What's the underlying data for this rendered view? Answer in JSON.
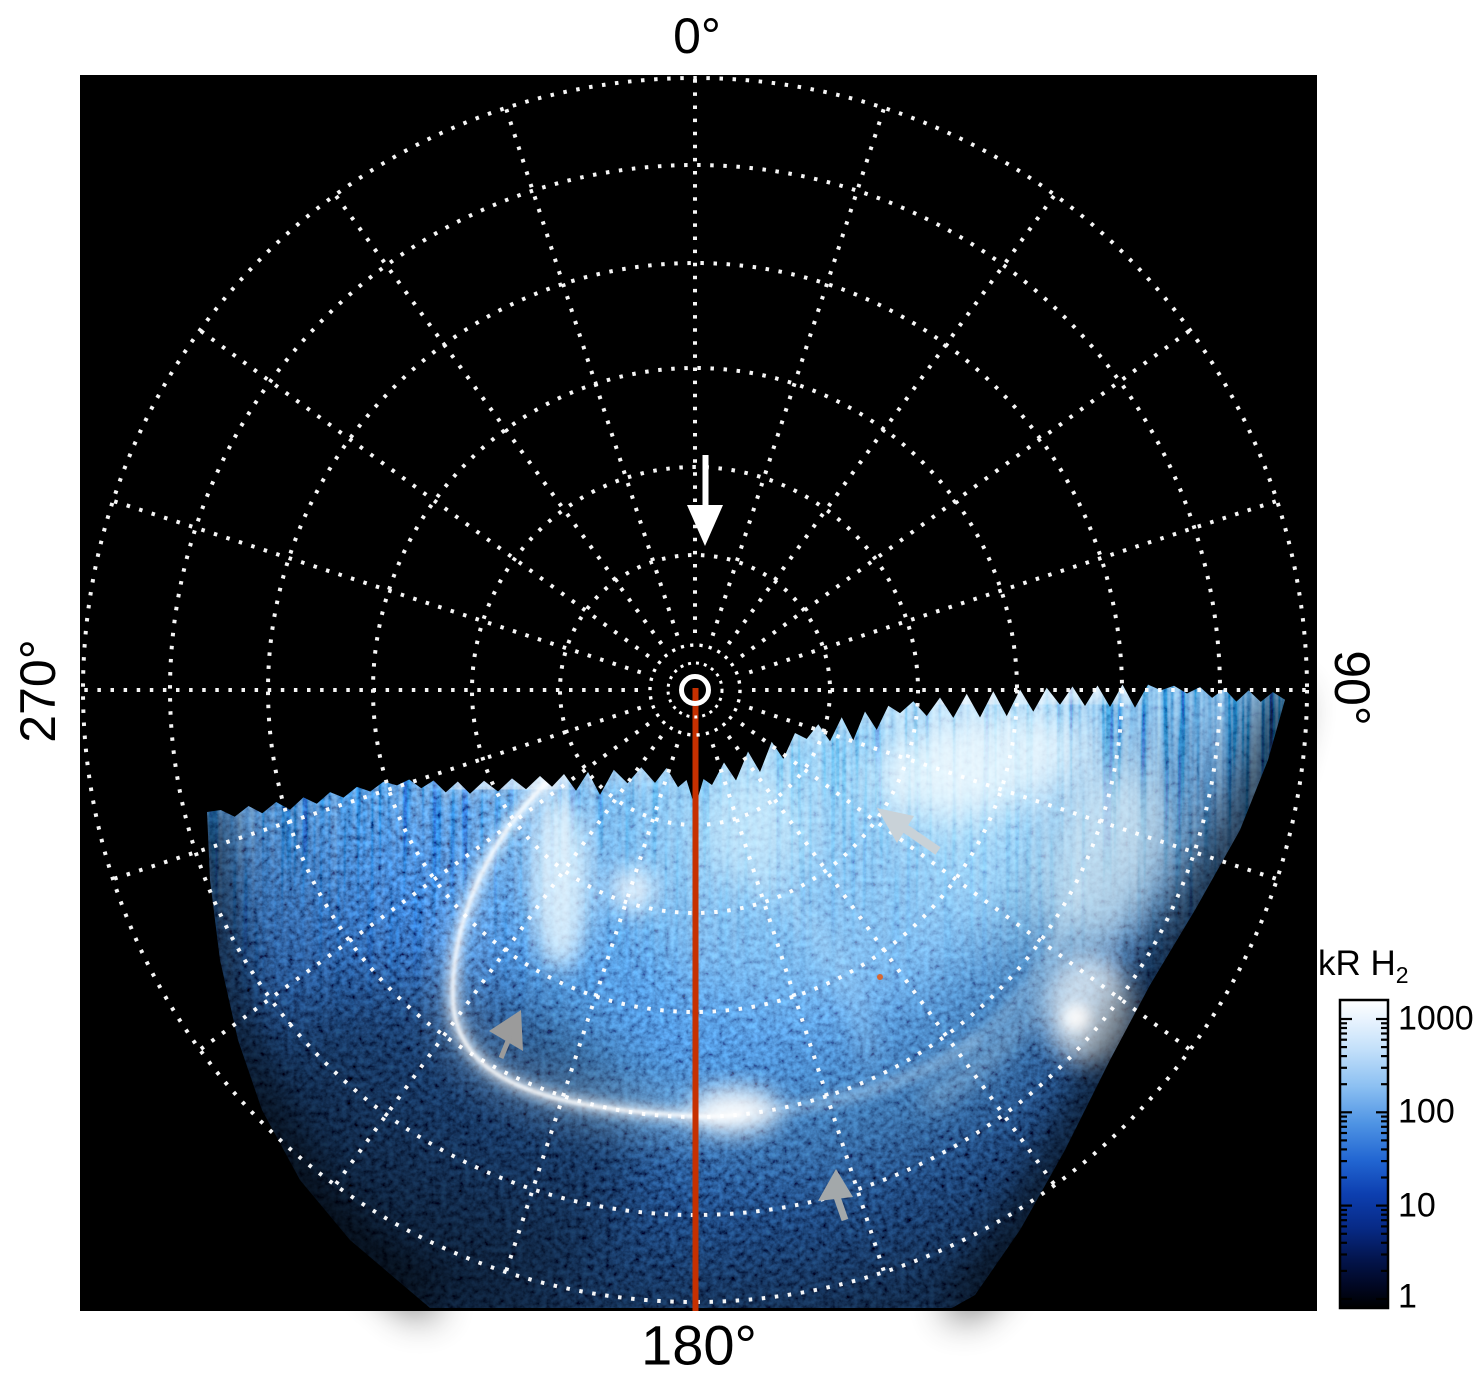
{
  "labels": {
    "top": "0°",
    "right": "90°",
    "bottom": "180°",
    "left": "270°"
  },
  "colorbar": {
    "title_main": "kR H",
    "title_sub": "2",
    "ticks": [
      "1000",
      "100",
      "10",
      "1"
    ]
  },
  "chart_data": {
    "type": "heatmap",
    "projection": "polar",
    "angular_tick_labels": [
      "0°",
      "90°",
      "180°",
      "270°"
    ],
    "grid": {
      "style": "white dotted",
      "radial_line_spacing_deg": 18,
      "shown_over_data": true
    },
    "colorbar": {
      "label": "kR H2",
      "scale": "log",
      "tick_values": [
        1000,
        100,
        10,
        1
      ],
      "range": [
        1,
        1000
      ],
      "colormap": [
        "#000000",
        "#051a70",
        "#1a5ed2",
        "#8cc0f2",
        "#ffffff"
      ],
      "position": "right"
    },
    "data_extent": "auroral emission fills roughly the 90°–270° (lower) half of the polar projection; upper half is black (no data)",
    "features": [
      "bright white auroral arc forming a partial oval on the lower-left, peak brightness near 1000 kR",
      "diffuse bright emission patches in the center and upper-right of the data region",
      "noisy blue background emission of roughly 1–10 kR toward the outer edge",
      "jagged black/white fringe along the top boundary of the observed data"
    ],
    "annotations": [
      {
        "type": "line",
        "color": "#c63000",
        "description": "solid red-orange meridian line from the pole along 180° to the edge"
      },
      {
        "type": "marker",
        "color": "#ffffff",
        "description": "solid white ring at the pole (projection center)"
      },
      {
        "type": "arrow",
        "color": "#ffffff",
        "position": "on 0° meridian above pole",
        "pointing": "down toward pole"
      },
      {
        "type": "arrow",
        "color": "#c9d2d8",
        "position": "upper right of aurora",
        "pointing": "up-left"
      },
      {
        "type": "arrow",
        "color": "#9b9b9b",
        "position": "left of main auroral arc",
        "pointing": "left"
      },
      {
        "type": "arrow",
        "color": "#a3a8aa",
        "position": "lower center of aurora",
        "pointing": "up"
      }
    ]
  }
}
